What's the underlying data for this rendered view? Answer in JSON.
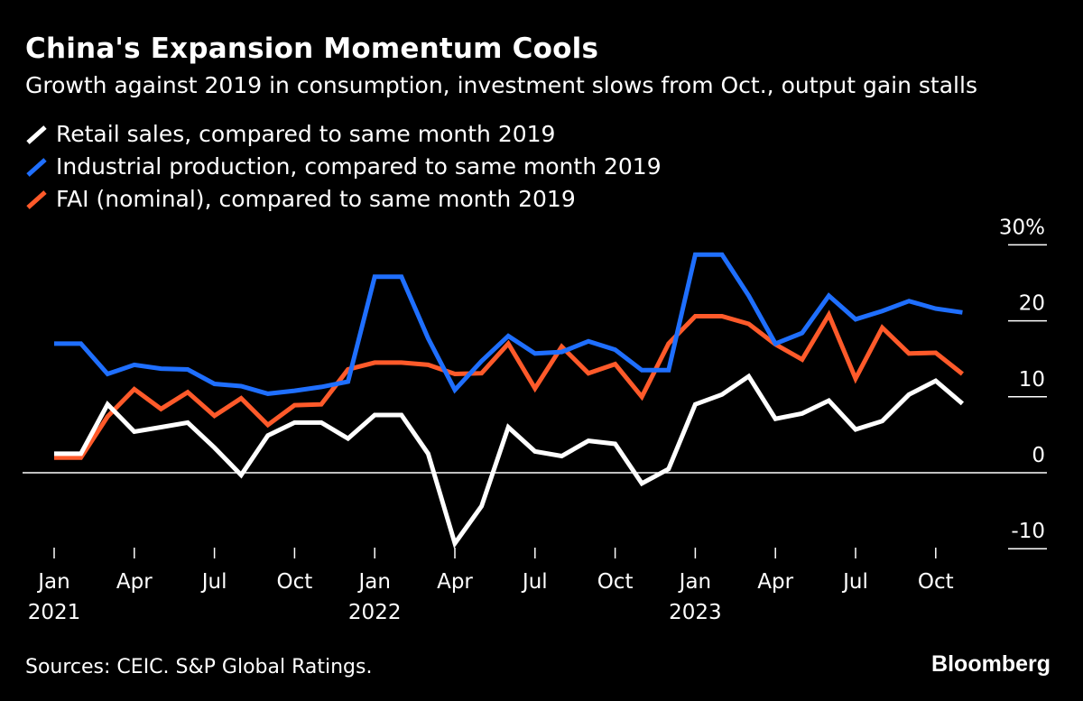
{
  "title": "China's Expansion Momentum Cools",
  "subtitle": "Growth against 2019 in consumption, investment slows from Oct., output gain stalls",
  "source": "Sources: CEIC. S&P Global Ratings.",
  "brand": "Bloomberg",
  "colors": {
    "background": "#000000",
    "retail": "#ffffff",
    "industrial": "#1f6fff",
    "fai": "#ff5a2a",
    "axis": "#ffffff"
  },
  "chart_data": {
    "type": "line",
    "title": "China's Expansion Momentum Cools",
    "ylim": [
      -10,
      30
    ],
    "y_ticks": [
      -10,
      0,
      10,
      20,
      30
    ],
    "y_tick_labels": [
      "-10",
      "0",
      "10",
      "20",
      "30%"
    ],
    "x": [
      "Jan 2021",
      "Feb 2021",
      "Mar 2021",
      "Apr 2021",
      "May 2021",
      "Jun 2021",
      "Jul 2021",
      "Aug 2021",
      "Sep 2021",
      "Oct 2021",
      "Nov 2021",
      "Dec 2021",
      "Jan 2022",
      "Feb 2022",
      "Mar 2022",
      "Apr 2022",
      "May 2022",
      "Jun 2022",
      "Jul 2022",
      "Aug 2022",
      "Sep 2022",
      "Oct 2022",
      "Nov 2022",
      "Dec 2022",
      "Jan 2023",
      "Feb 2023",
      "Mar 2023",
      "Apr 2023",
      "May 2023",
      "Jun 2023",
      "Jul 2023",
      "Aug 2023",
      "Sep 2023",
      "Oct 2023",
      "Nov 2023"
    ],
    "x_tick_labels": [
      {
        "index": 0,
        "month": "Jan",
        "year": "2021"
      },
      {
        "index": 3,
        "month": "Apr",
        "year": ""
      },
      {
        "index": 6,
        "month": "Jul",
        "year": ""
      },
      {
        "index": 9,
        "month": "Oct",
        "year": ""
      },
      {
        "index": 12,
        "month": "Jan",
        "year": "2022"
      },
      {
        "index": 15,
        "month": "Apr",
        "year": ""
      },
      {
        "index": 18,
        "month": "Jul",
        "year": ""
      },
      {
        "index": 21,
        "month": "Oct",
        "year": ""
      },
      {
        "index": 24,
        "month": "Jan",
        "year": "2023"
      },
      {
        "index": 27,
        "month": "Apr",
        "year": ""
      },
      {
        "index": 30,
        "month": "Jul",
        "year": ""
      },
      {
        "index": 33,
        "month": "Oct",
        "year": ""
      }
    ],
    "series": [
      {
        "name": "Retail sales, compared to same month 2019",
        "color_key": "retail",
        "values": [
          2.5,
          2.5,
          9.0,
          5.4,
          6.0,
          6.6,
          3.3,
          -0.3,
          4.9,
          6.6,
          6.6,
          4.5,
          7.6,
          7.6,
          2.5,
          -9.3,
          -4.4,
          6.0,
          2.8,
          2.2,
          4.2,
          3.8,
          -1.4,
          0.5,
          9.0,
          10.3,
          12.7,
          7.1,
          7.8,
          9.5,
          5.7,
          6.8,
          10.3,
          12.1,
          9.1
        ]
      },
      {
        "name": "Industrial production, compared to same month 2019",
        "color_key": "industrial",
        "values": [
          17.0,
          17.0,
          13.0,
          14.2,
          13.7,
          13.6,
          11.7,
          11.4,
          10.4,
          10.8,
          11.3,
          12.0,
          25.8,
          25.8,
          17.7,
          10.9,
          14.7,
          18.0,
          15.7,
          15.9,
          17.3,
          16.2,
          13.5,
          13.5,
          28.7,
          28.7,
          23.3,
          17.0,
          18.4,
          23.3,
          20.2,
          21.3,
          22.6,
          21.6,
          21.1
        ]
      },
      {
        "name": "FAI (nominal), compared to same month 2019",
        "color_key": "fai",
        "values": [
          2.0,
          2.0,
          7.4,
          11.0,
          8.4,
          10.6,
          7.5,
          9.8,
          6.3,
          8.9,
          9.0,
          13.6,
          14.5,
          14.5,
          14.2,
          13.0,
          13.1,
          17.0,
          11.1,
          16.6,
          13.1,
          14.3,
          10.0,
          17.0,
          20.6,
          20.6,
          19.6,
          16.9,
          14.9,
          20.8,
          12.4,
          19.1,
          15.7,
          15.8,
          13.0
        ]
      }
    ]
  }
}
